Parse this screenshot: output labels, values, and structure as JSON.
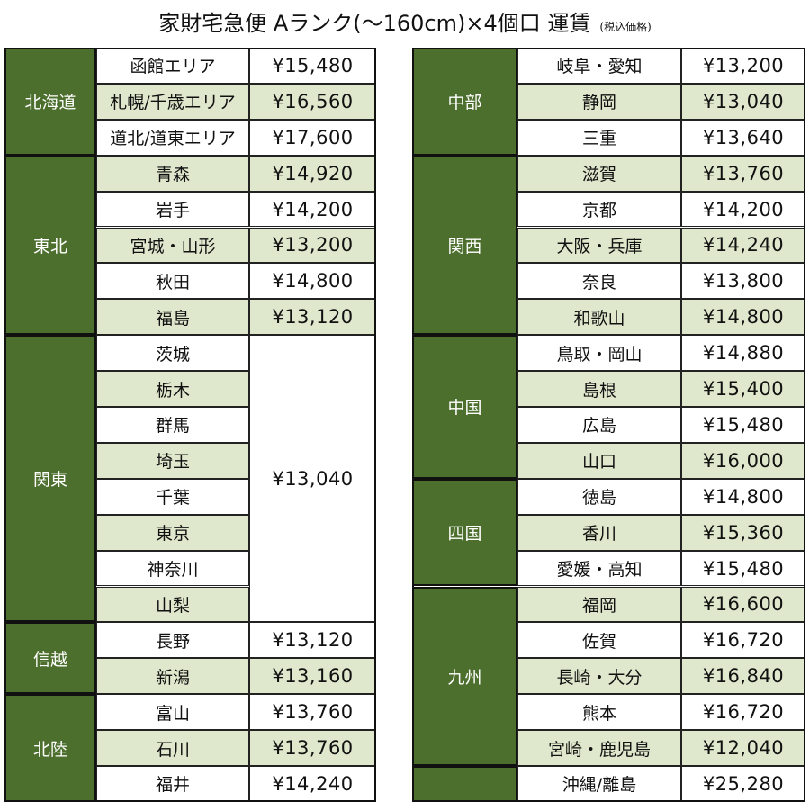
{
  "header": {
    "title": "家財宅急便 Aランク(～160cm)×4個口 運賃",
    "note": "(税込価格)"
  },
  "tables": [
    {
      "groups": [
        {
          "region": "北海道",
          "rows": [
            {
              "area": "函館エリア",
              "price": "¥15,480"
            },
            {
              "area": "札幌/千歳エリア",
              "price": "¥16,560"
            },
            {
              "area": "道北/道東エリア",
              "price": "¥17,600"
            }
          ]
        },
        {
          "region": "東北",
          "rows": [
            {
              "area": "青森",
              "price": "¥14,920"
            },
            {
              "area": "岩手",
              "price": "¥14,200"
            },
            {
              "area": "宮城・山形",
              "price": "¥13,200"
            },
            {
              "area": "秋田",
              "price": "¥14,800"
            },
            {
              "area": "福島",
              "price": "¥13,120"
            }
          ]
        },
        {
          "region": "関東",
          "price": "¥13,040",
          "rows": [
            {
              "area": "茨城"
            },
            {
              "area": "栃木"
            },
            {
              "area": "群馬"
            },
            {
              "area": "埼玉"
            },
            {
              "area": "千葉"
            },
            {
              "area": "東京"
            },
            {
              "area": "神奈川"
            },
            {
              "area": "山梨"
            }
          ]
        },
        {
          "region": "信越",
          "rows": [
            {
              "area": "長野",
              "price": "¥13,120"
            },
            {
              "area": "新潟",
              "price": "¥13,160"
            }
          ]
        },
        {
          "region": "北陸",
          "rows": [
            {
              "area": "富山",
              "price": "¥13,760"
            },
            {
              "area": "石川",
              "price": "¥13,760"
            },
            {
              "area": "福井",
              "price": "¥14,240"
            }
          ]
        }
      ]
    },
    {
      "groups": [
        {
          "region": "中部",
          "rows": [
            {
              "area": "岐阜・愛知",
              "price": "¥13,200"
            },
            {
              "area": "静岡",
              "price": "¥13,040"
            },
            {
              "area": "三重",
              "price": "¥13,640"
            }
          ]
        },
        {
          "region": "関西",
          "rows": [
            {
              "area": "滋賀",
              "price": "¥13,760"
            },
            {
              "area": "京都",
              "price": "¥14,200"
            },
            {
              "area": "大阪・兵庫",
              "price": "¥14,240"
            },
            {
              "area": "奈良",
              "price": "¥13,800"
            },
            {
              "area": "和歌山",
              "price": "¥14,800"
            }
          ]
        },
        {
          "region": "中国",
          "rows": [
            {
              "area": "鳥取・岡山",
              "price": "¥14,880"
            },
            {
              "area": "島根",
              "price": "¥15,400"
            },
            {
              "area": "広島",
              "price": "¥15,480"
            },
            {
              "area": "山口",
              "price": "¥16,000"
            }
          ]
        },
        {
          "region": "四国",
          "rows": [
            {
              "area": "徳島",
              "price": "¥14,800"
            },
            {
              "area": "香川",
              "price": "¥15,360"
            },
            {
              "area": "愛媛・高知",
              "price": "¥15,480"
            }
          ]
        },
        {
          "region": "九州",
          "rows": [
            {
              "area": "福岡",
              "price": "¥16,600"
            },
            {
              "area": "佐賀",
              "price": "¥16,720"
            },
            {
              "area": "長崎・大分",
              "price": "¥16,840"
            },
            {
              "area": "熊本",
              "price": "¥16,720"
            },
            {
              "area": "宮崎・鹿児島",
              "price": "¥12,040"
            }
          ]
        },
        {
          "rows": [
            {
              "area": "沖縄/離島",
              "price": "¥25,280"
            }
          ]
        }
      ]
    }
  ]
}
